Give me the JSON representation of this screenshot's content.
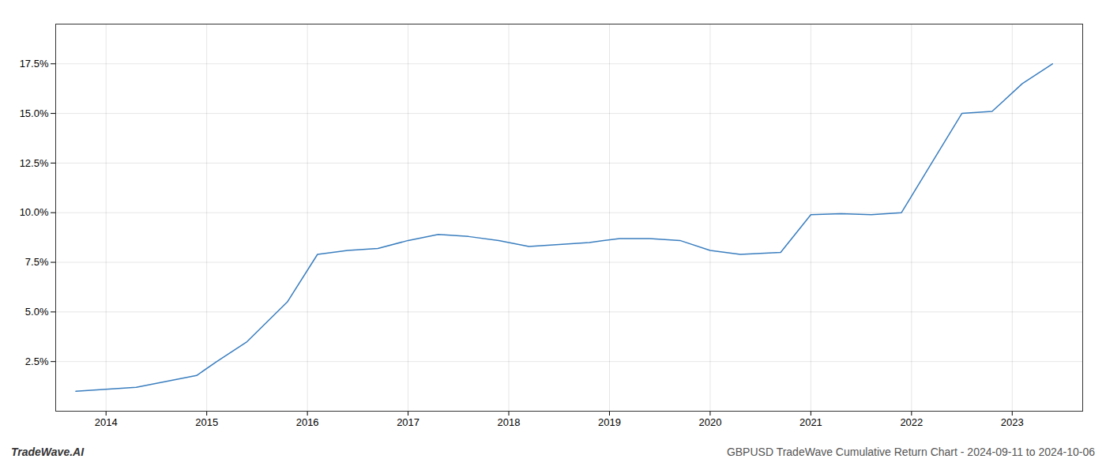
{
  "chart_data": {
    "type": "line",
    "title": "GBPUSD TradeWave Cumulative Return Chart - 2024-09-11 to 2024-10-06",
    "annotations": [
      "TradeWave.AI"
    ],
    "x": [
      2013.7,
      2014.0,
      2014.3,
      2014.6,
      2014.9,
      2015.1,
      2015.4,
      2015.8,
      2016.1,
      2016.4,
      2016.7,
      2017.0,
      2017.3,
      2017.6,
      2017.9,
      2018.2,
      2018.5,
      2018.8,
      2019.1,
      2019.4,
      2019.7,
      2020.0,
      2020.3,
      2020.7,
      2021.0,
      2021.3,
      2021.6,
      2021.9,
      2022.2,
      2022.5,
      2022.8,
      2023.1,
      2023.4
    ],
    "values": [
      1.0,
      1.1,
      1.2,
      1.5,
      1.8,
      2.5,
      3.5,
      5.5,
      7.9,
      8.1,
      8.2,
      8.6,
      8.9,
      8.8,
      8.6,
      8.3,
      8.4,
      8.5,
      8.7,
      8.7,
      8.6,
      8.1,
      7.9,
      8.0,
      9.9,
      9.95,
      9.9,
      10.0,
      12.5,
      15.0,
      15.1,
      16.5,
      17.5
    ],
    "color": "#3a7ebf",
    "xlim": [
      2013.5,
      2023.7
    ],
    "xticks": [
      2014,
      2015,
      2016,
      2017,
      2018,
      2019,
      2020,
      2021,
      2022,
      2023
    ],
    "ylim": [
      0.0,
      19.5
    ],
    "yticks": [
      {
        "value": 2.5,
        "label": "2.5%"
      },
      {
        "value": 5.0,
        "label": "5.0%"
      },
      {
        "value": 7.5,
        "label": "7.5%"
      },
      {
        "value": 10.0,
        "label": "10.0%"
      },
      {
        "value": 12.5,
        "label": "12.5%"
      },
      {
        "value": 15.0,
        "label": "15.0%"
      },
      {
        "value": 17.5,
        "label": "17.5%"
      }
    ],
    "grid": true
  }
}
